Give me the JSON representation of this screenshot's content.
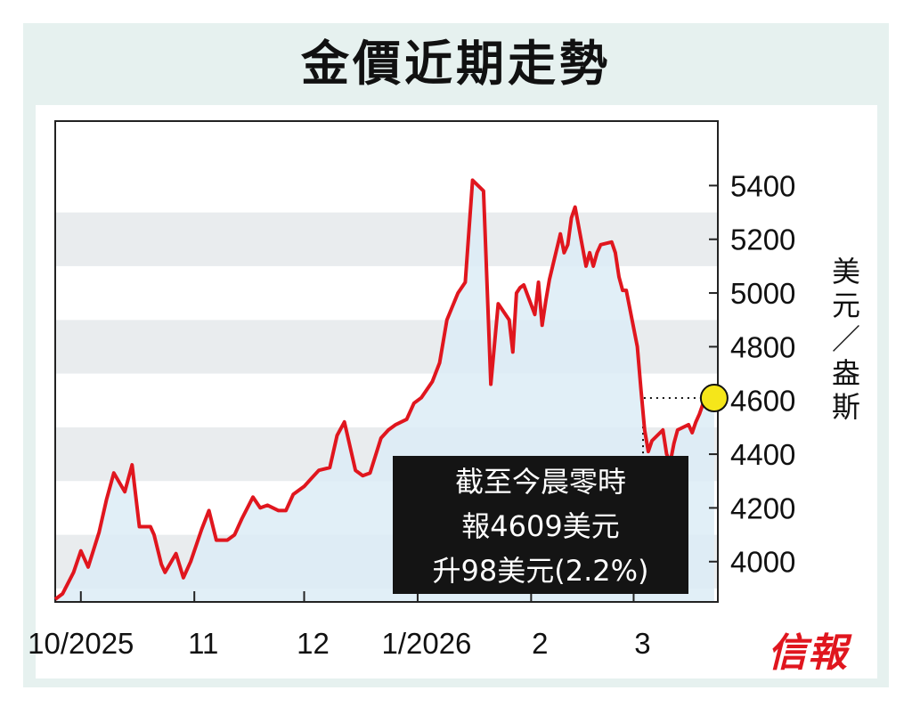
{
  "title": "金價近期走勢",
  "annotation": {
    "line1": "截至今晨零時",
    "line2": "報4609美元",
    "line3": "升98美元(2.2%)"
  },
  "brand_logo_text": "信報",
  "colors": {
    "line": "#e0161e",
    "area": "#dcecf6",
    "band": "#e9ecee",
    "marker": "#f5e61a",
    "frame": "#e6f1ef"
  },
  "chart_data": {
    "type": "area",
    "title": "金價近期走勢",
    "ylabel": "美元/盎斯",
    "y_ticks": [
      4000,
      4200,
      4400,
      4600,
      4800,
      5000,
      5200,
      5400
    ],
    "ylim": [
      3850,
      5640
    ],
    "x_tick_labels": [
      "10/2025",
      "11",
      "12",
      "1/2026",
      "2",
      "3"
    ],
    "xlim": [
      "2025-09-24",
      "2026-03-24"
    ],
    "grid": "alternating horizontal bands",
    "series": [
      {
        "dates": [
          "2025-09-24",
          "2025-09-26",
          "2025-09-29",
          "2025-10-01",
          "2025-10-03",
          "2025-10-06",
          "2025-10-08",
          "2025-10-10",
          "2025-10-13",
          "2025-10-15",
          "2025-10-17",
          "2025-10-20",
          "2025-10-21",
          "2025-10-23",
          "2025-10-24",
          "2025-10-27",
          "2025-10-29",
          "2025-10-31",
          "2025-11-03",
          "2025-11-05",
          "2025-11-07",
          "2025-11-10",
          "2025-11-12",
          "2025-11-14",
          "2025-11-17",
          "2025-11-19",
          "2025-11-21",
          "2025-11-24",
          "2025-11-26",
          "2025-11-28",
          "2025-12-01",
          "2025-12-03",
          "2025-12-05",
          "2025-12-08",
          "2025-12-10",
          "2025-12-12",
          "2025-12-15",
          "2025-12-17",
          "2025-12-19",
          "2025-12-22",
          "2025-12-24",
          "2025-12-26",
          "2025-12-29",
          "2025-12-31",
          "2026-01-02",
          "2026-01-05",
          "2026-01-07",
          "2026-01-09",
          "2026-01-12",
          "2026-01-14",
          "2026-01-16",
          "2026-01-19",
          "2026-01-21",
          "2026-01-23",
          "2026-01-26",
          "2026-01-27",
          "2026-01-28",
          "2026-01-29",
          "2026-01-30",
          "2026-02-02",
          "2026-02-03",
          "2026-02-04",
          "2026-02-05",
          "2026-02-06",
          "2026-02-09",
          "2026-02-10",
          "2026-02-11",
          "2026-02-12",
          "2026-02-13",
          "2026-02-16",
          "2026-02-17",
          "2026-02-18",
          "2026-02-19",
          "2026-02-20",
          "2026-02-23",
          "2026-02-24",
          "2026-02-25",
          "2026-02-26",
          "2026-02-27",
          "2026-03-02",
          "2026-03-03",
          "2026-03-04",
          "2026-03-05",
          "2026-03-06",
          "2026-03-09",
          "2026-03-10",
          "2026-03-11",
          "2026-03-12",
          "2026-03-13",
          "2026-03-16",
          "2026-03-17",
          "2026-03-18",
          "2026-03-19",
          "2026-03-20",
          "2026-03-23"
        ],
        "values": [
          3860,
          3880,
          3960,
          4040,
          3980,
          4110,
          4230,
          4330,
          4260,
          4360,
          4130,
          4130,
          4100,
          3990,
          3960,
          4030,
          3940,
          4000,
          4120,
          4190,
          4080,
          4080,
          4100,
          4160,
          4240,
          4200,
          4210,
          4190,
          4190,
          4250,
          4280,
          4310,
          4340,
          4350,
          4470,
          4520,
          4340,
          4320,
          4330,
          4460,
          4490,
          4510,
          4530,
          4590,
          4610,
          4670,
          4740,
          4900,
          5000,
          5040,
          5420,
          5380,
          4660,
          4960,
          4900,
          4780,
          5000,
          5020,
          5030,
          4920,
          5040,
          4880,
          4970,
          5050,
          5220,
          5150,
          5180,
          5280,
          5320,
          5100,
          5150,
          5100,
          5150,
          5180,
          5190,
          5150,
          5060,
          5010,
          5010,
          4800,
          4640,
          4490,
          4410,
          4450,
          4490,
          4400,
          4370,
          4440,
          4490,
          4510,
          4480,
          4520,
          4550,
          4590,
          4609
        ]
      }
    ],
    "last_value": 4609
  }
}
